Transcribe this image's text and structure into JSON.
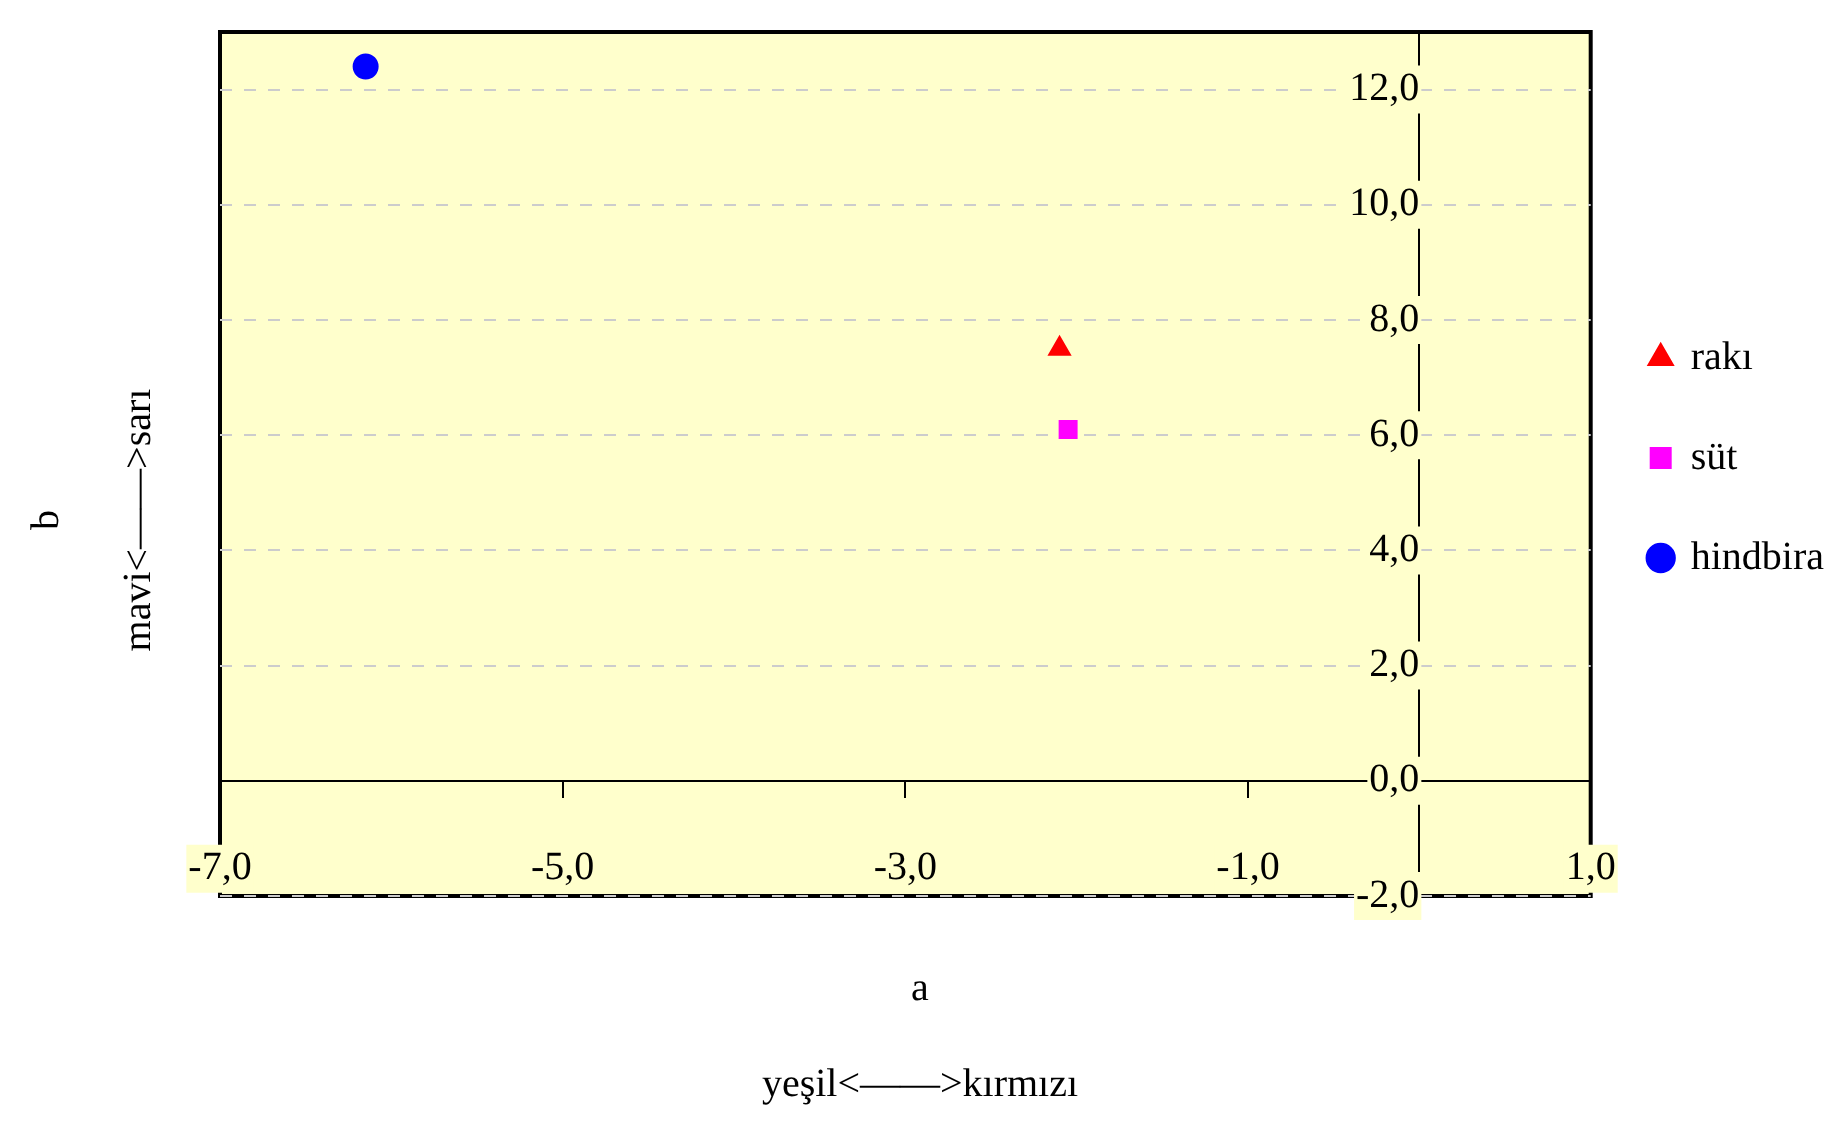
{
  "chart_data": {
    "type": "scatter",
    "xlabel": "a\nyeşil<——>kırmızı",
    "ylabel": "b\nmavi<——>sarı",
    "series": [
      {
        "name": "rakı",
        "color": "#ff0000",
        "marker": "triangle",
        "x": [
          -2.1
        ],
        "values": [
          7.5
        ]
      },
      {
        "name": "süt",
        "color": "#ff00ff",
        "marker": "square",
        "x": [
          -2.05
        ],
        "values": [
          6.1
        ]
      },
      {
        "name": "hindbira",
        "color": "#0000ff",
        "marker": "circle",
        "x": [
          -6.15
        ],
        "values": [
          12.4
        ]
      }
    ],
    "xlim": [
      -7,
      1
    ],
    "xticks": [
      {
        "value": -7,
        "label": "-7,0"
      },
      {
        "value": -5,
        "label": "-5,0"
      },
      {
        "value": -3,
        "label": "-3,0"
      },
      {
        "value": -1,
        "label": "-1,0"
      },
      {
        "value": 1,
        "label": "1,0"
      }
    ],
    "ylim": [
      -2,
      13
    ],
    "yticks": [
      {
        "value": -2,
        "label": "-2,0"
      },
      {
        "value": 0,
        "label": "0,0"
      },
      {
        "value": 2,
        "label": "2,0"
      },
      {
        "value": 4,
        "label": "4,0"
      },
      {
        "value": 6,
        "label": "6,0"
      },
      {
        "value": 8,
        "label": "8,0"
      },
      {
        "value": 10,
        "label": "10,0"
      },
      {
        "value": 12,
        "label": "12,0"
      }
    ],
    "grid": "y",
    "legend": "right"
  }
}
